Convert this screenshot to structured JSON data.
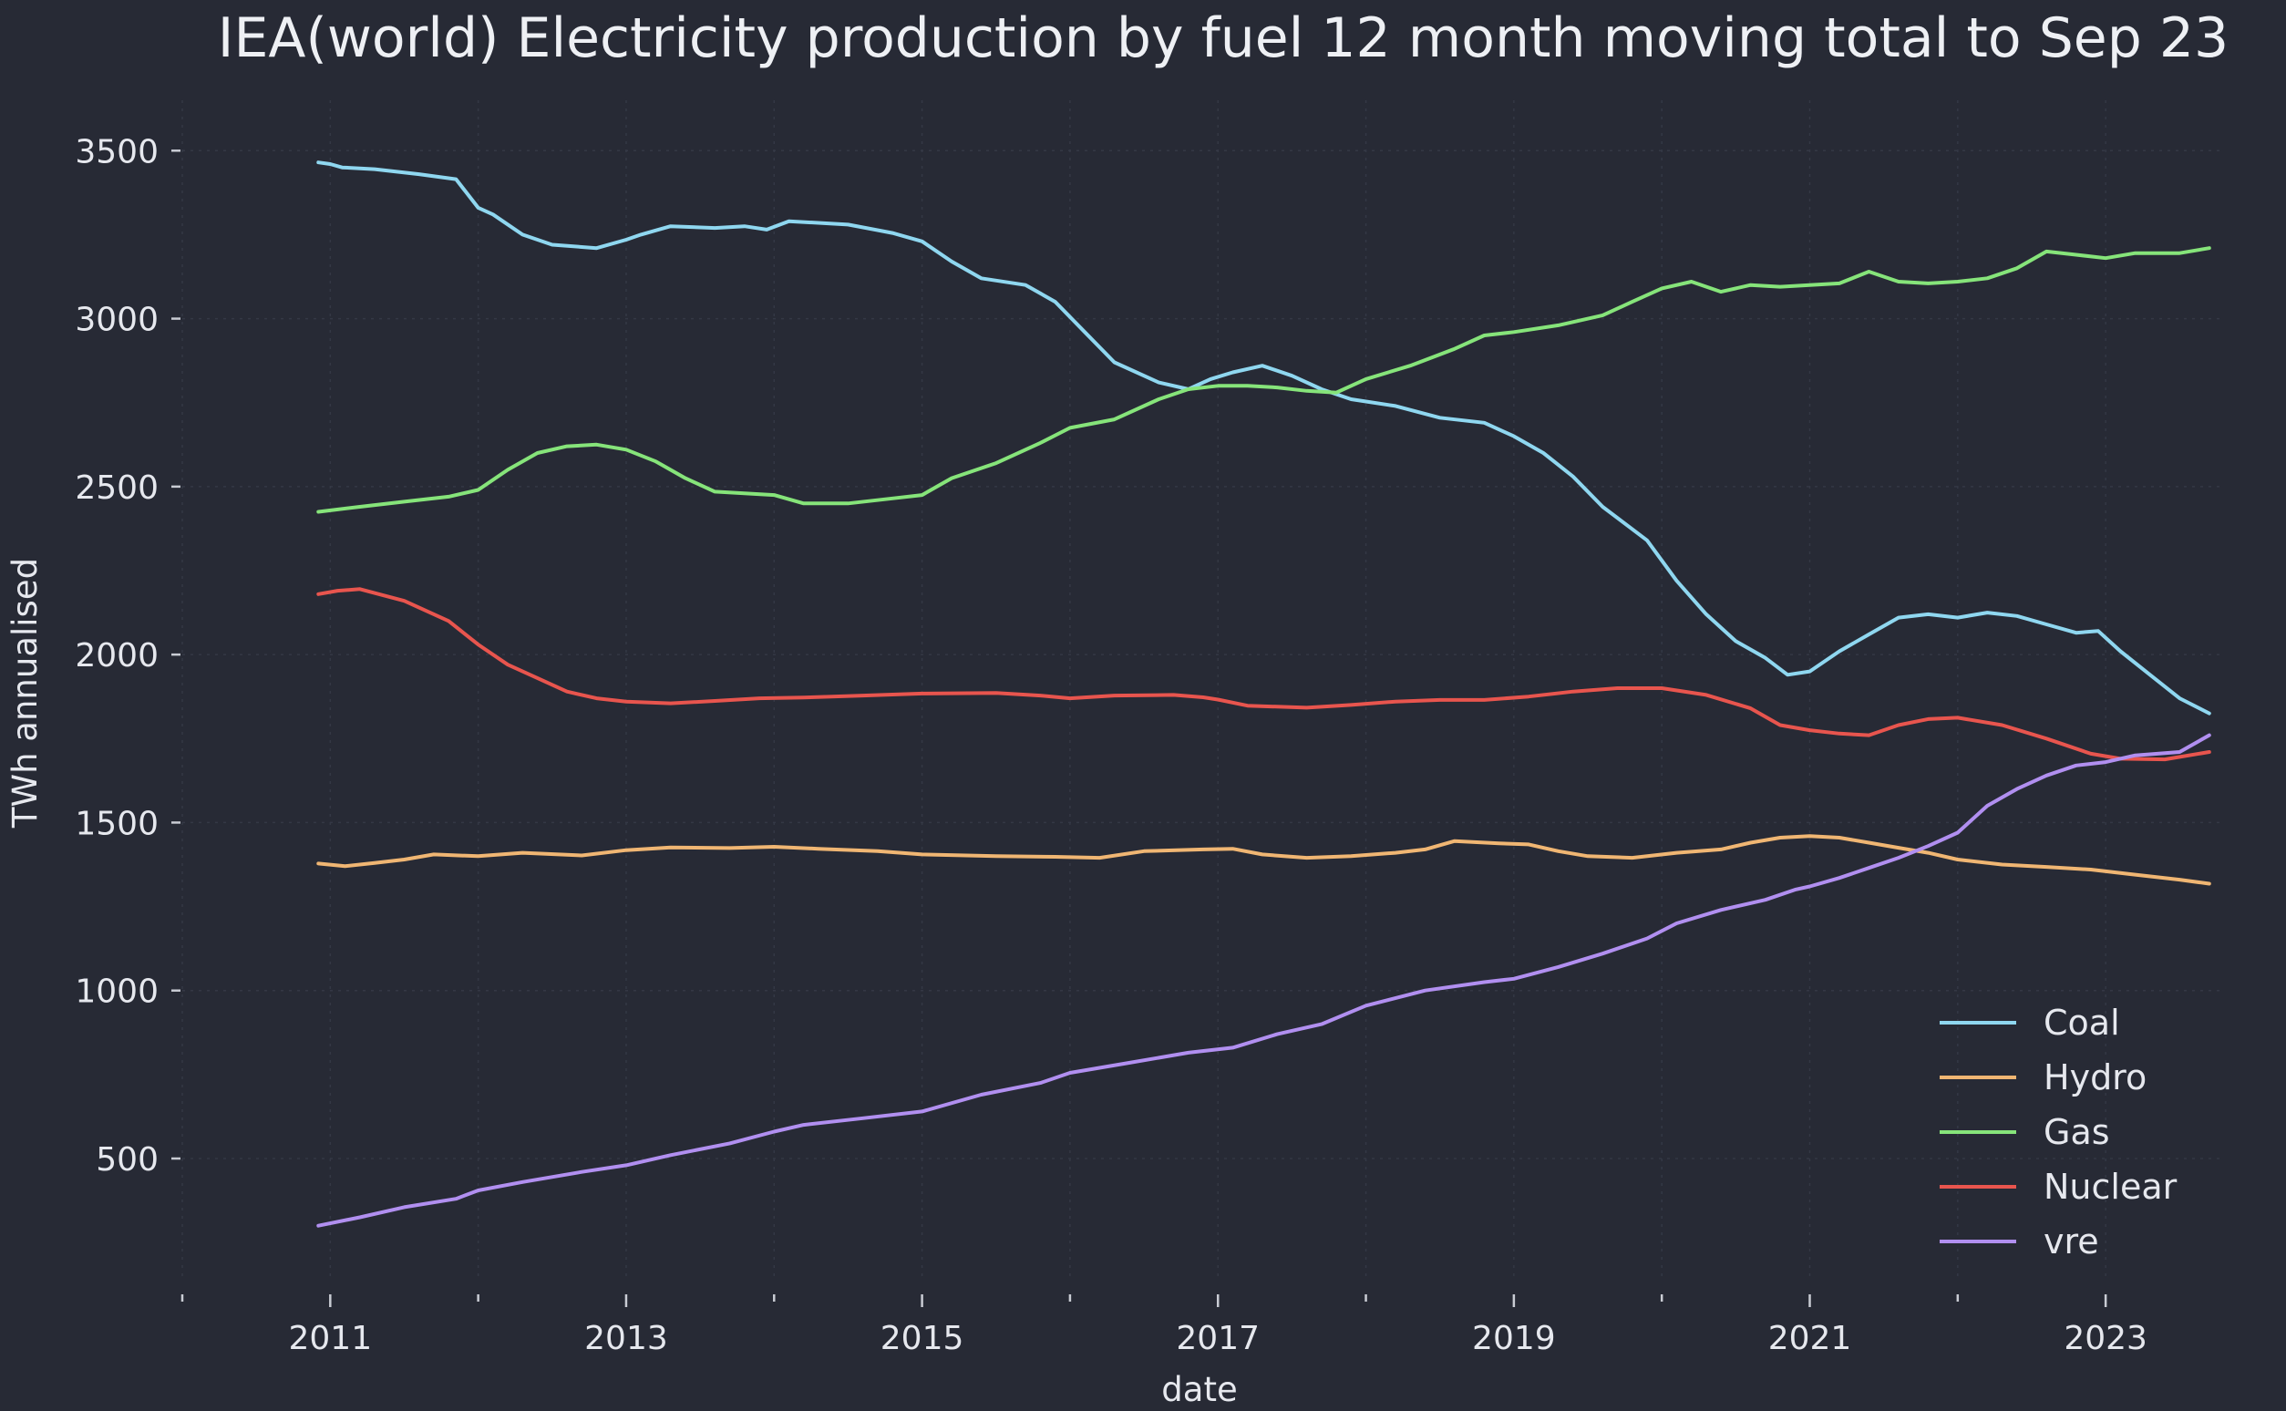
{
  "chart_data": {
    "type": "line",
    "title": "IEA(world) Electricity production by fuel 12 month moving total to Sep 23",
    "xlabel": "date",
    "ylabel": "TWh annualised",
    "xlim": [
      2010.0,
      2023.8
    ],
    "ylim": [
      150,
      3650
    ],
    "x_ticks": [
      2011,
      2013,
      2015,
      2017,
      2019,
      2021,
      2023
    ],
    "y_ticks": [
      500,
      1000,
      1500,
      2000,
      2500,
      3000,
      3500
    ],
    "grid": true,
    "legend_position": "bottom-right",
    "series": [
      {
        "name": "Coal",
        "color": "#8fd7f0",
        "x": [
          2010.92,
          2011.0,
          2011.08,
          2011.3,
          2011.6,
          2011.85,
          2012.0,
          2012.1,
          2012.3,
          2012.5,
          2012.8,
          2013.0,
          2013.1,
          2013.3,
          2013.6,
          2013.8,
          2013.95,
          2014.1,
          2014.5,
          2014.8,
          2015.0,
          2015.2,
          2015.4,
          2015.7,
          2015.9,
          2016.1,
          2016.3,
          2016.6,
          2016.8,
          2016.95,
          2017.1,
          2017.3,
          2017.5,
          2017.7,
          2017.9,
          2018.2,
          2018.5,
          2018.8,
          2019.0,
          2019.2,
          2019.4,
          2019.6,
          2019.9,
          2020.1,
          2020.3,
          2020.5,
          2020.7,
          2020.85,
          2021.0,
          2021.2,
          2021.4,
          2021.6,
          2021.8,
          2022.0,
          2022.2,
          2022.4,
          2022.6,
          2022.8,
          2022.95,
          2023.1,
          2023.3,
          2023.5,
          2023.7
        ],
        "values": [
          3465,
          3460,
          3450,
          3445,
          3430,
          3415,
          3330,
          3310,
          3250,
          3220,
          3210,
          3235,
          3250,
          3275,
          3270,
          3275,
          3265,
          3290,
          3280,
          3255,
          3230,
          3170,
          3120,
          3100,
          3050,
          2960,
          2870,
          2810,
          2790,
          2820,
          2840,
          2860,
          2830,
          2790,
          2760,
          2740,
          2705,
          2690,
          2650,
          2600,
          2530,
          2440,
          2340,
          2220,
          2120,
          2040,
          1990,
          1940,
          1950,
          2010,
          2060,
          2110,
          2120,
          2110,
          2125,
          2115,
          2090,
          2065,
          2070,
          2010,
          1940,
          1870,
          1825
        ]
      },
      {
        "name": "Hydro",
        "color": "#f0b673",
        "x": [
          2010.92,
          2011.1,
          2011.3,
          2011.5,
          2011.7,
          2012.0,
          2012.3,
          2012.7,
          2013.0,
          2013.3,
          2013.7,
          2014.0,
          2014.3,
          2014.7,
          2015.0,
          2015.5,
          2015.9,
          2016.2,
          2016.5,
          2016.9,
          2017.1,
          2017.3,
          2017.6,
          2017.9,
          2018.2,
          2018.4,
          2018.6,
          2018.9,
          2019.1,
          2019.3,
          2019.5,
          2019.8,
          2020.1,
          2020.4,
          2020.6,
          2020.8,
          2021.0,
          2021.2,
          2021.4,
          2021.6,
          2021.8,
          2022.0,
          2022.3,
          2022.6,
          2022.9,
          2023.2,
          2023.5,
          2023.7
        ],
        "values": [
          1378,
          1370,
          1380,
          1390,
          1405,
          1400,
          1410,
          1402,
          1418,
          1426,
          1424,
          1428,
          1422,
          1415,
          1405,
          1400,
          1398,
          1395,
          1415,
          1420,
          1422,
          1405,
          1395,
          1400,
          1410,
          1420,
          1445,
          1438,
          1435,
          1415,
          1400,
          1395,
          1410,
          1420,
          1440,
          1455,
          1460,
          1455,
          1440,
          1425,
          1410,
          1390,
          1375,
          1368,
          1360,
          1345,
          1330,
          1318
        ]
      },
      {
        "name": "Gas",
        "color": "#86e47a",
        "x": [
          2010.92,
          2011.2,
          2011.5,
          2011.8,
          2012.0,
          2012.2,
          2012.4,
          2012.6,
          2012.8,
          2013.0,
          2013.2,
          2013.4,
          2013.6,
          2013.8,
          2014.0,
          2014.2,
          2014.5,
          2014.8,
          2015.0,
          2015.2,
          2015.5,
          2015.8,
          2016.0,
          2016.3,
          2016.6,
          2016.8,
          2017.0,
          2017.2,
          2017.4,
          2017.6,
          2017.8,
          2018.0,
          2018.3,
          2018.6,
          2018.8,
          2019.0,
          2019.3,
          2019.6,
          2019.8,
          2020.0,
          2020.2,
          2020.4,
          2020.6,
          2020.8,
          2021.0,
          2021.2,
          2021.4,
          2021.6,
          2021.8,
          2022.0,
          2022.2,
          2022.4,
          2022.6,
          2022.8,
          2023.0,
          2023.2,
          2023.5,
          2023.7
        ],
        "values": [
          2425,
          2440,
          2455,
          2470,
          2490,
          2550,
          2600,
          2620,
          2625,
          2610,
          2575,
          2525,
          2485,
          2480,
          2475,
          2450,
          2450,
          2465,
          2475,
          2525,
          2570,
          2630,
          2675,
          2700,
          2760,
          2790,
          2800,
          2800,
          2795,
          2785,
          2780,
          2820,
          2860,
          2910,
          2950,
          2960,
          2980,
          3010,
          3050,
          3090,
          3110,
          3080,
          3100,
          3095,
          3100,
          3105,
          3140,
          3110,
          3105,
          3110,
          3120,
          3150,
          3200,
          3190,
          3180,
          3195,
          3195,
          3210
        ]
      },
      {
        "name": "Nuclear",
        "color": "#e8554e",
        "x": [
          2010.92,
          2011.05,
          2011.2,
          2011.5,
          2011.8,
          2012.0,
          2012.2,
          2012.4,
          2012.6,
          2012.8,
          2013.0,
          2013.3,
          2013.6,
          2013.9,
          2014.2,
          2014.6,
          2015.0,
          2015.5,
          2015.8,
          2016.0,
          2016.3,
          2016.7,
          2016.9,
          2017.0,
          2017.2,
          2017.6,
          2017.9,
          2018.2,
          2018.5,
          2018.8,
          2019.1,
          2019.4,
          2019.7,
          2020.0,
          2020.3,
          2020.6,
          2020.8,
          2021.0,
          2021.2,
          2021.4,
          2021.6,
          2021.8,
          2022.0,
          2022.3,
          2022.6,
          2022.9,
          2023.1,
          2023.4,
          2023.7
        ],
        "values": [
          2180,
          2190,
          2195,
          2160,
          2100,
          2030,
          1970,
          1930,
          1890,
          1870,
          1860,
          1855,
          1862,
          1870,
          1872,
          1878,
          1884,
          1886,
          1878,
          1870,
          1878,
          1880,
          1873,
          1866,
          1848,
          1842,
          1850,
          1860,
          1865,
          1865,
          1875,
          1890,
          1900,
          1900,
          1880,
          1840,
          1790,
          1775,
          1765,
          1760,
          1790,
          1808,
          1812,
          1790,
          1750,
          1705,
          1690,
          1688,
          1710
        ]
      },
      {
        "name": "vre",
        "color": "#b18ff0",
        "x": [
          2010.92,
          2011.2,
          2011.5,
          2011.85,
          2012.0,
          2012.3,
          2012.7,
          2013.0,
          2013.3,
          2013.7,
          2014.0,
          2014.2,
          2014.6,
          2015.0,
          2015.4,
          2015.8,
          2016.0,
          2016.4,
          2016.8,
          2017.1,
          2017.4,
          2017.7,
          2018.0,
          2018.4,
          2018.8,
          2019.0,
          2019.3,
          2019.6,
          2019.9,
          2020.1,
          2020.4,
          2020.7,
          2020.9,
          2021.0,
          2021.2,
          2021.4,
          2021.6,
          2021.8,
          2022.0,
          2022.2,
          2022.4,
          2022.6,
          2022.8,
          2023.0,
          2023.2,
          2023.5,
          2023.7
        ],
        "values": [
          300,
          325,
          355,
          380,
          405,
          430,
          460,
          480,
          510,
          545,
          580,
          600,
          620,
          640,
          690,
          725,
          755,
          785,
          815,
          830,
          870,
          900,
          955,
          1000,
          1025,
          1035,
          1070,
          1110,
          1155,
          1200,
          1240,
          1270,
          1300,
          1310,
          1335,
          1365,
          1395,
          1430,
          1470,
          1550,
          1600,
          1640,
          1670,
          1680,
          1700,
          1710,
          1760
        ]
      }
    ]
  }
}
